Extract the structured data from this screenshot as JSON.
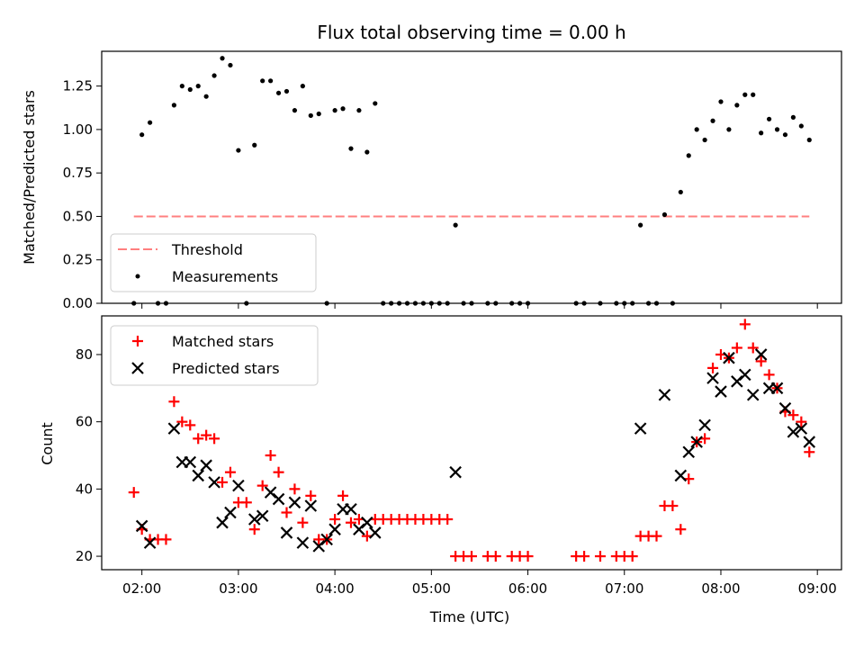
{
  "chart_data": [
    {
      "type": "scatter",
      "title": "Flux total observing time = 0.00 h",
      "xlabel": "",
      "ylabel": "Matched/Predicted stars",
      "xlim": [
        "01:35",
        "09:15"
      ],
      "ylim": [
        0,
        1.45
      ],
      "yticks": [
        0.0,
        0.25,
        0.5,
        0.75,
        1.0,
        1.25
      ],
      "ytick_labels": [
        "0.00",
        "0.25",
        "0.50",
        "0.75",
        "1.00",
        "1.25"
      ],
      "legend_position": "lower-left",
      "threshold": {
        "name": "Threshold",
        "y": 0.5,
        "x_range": [
          "01:55",
          "08:55"
        ],
        "color": "#ff7f7f",
        "style": "dashed"
      },
      "series": [
        {
          "name": "Measurements",
          "color": "#000000",
          "marker": "dot",
          "x": [
            "01:55",
            "02:00",
            "02:05",
            "02:10",
            "02:15",
            "02:20",
            "02:25",
            "02:30",
            "02:35",
            "02:40",
            "02:45",
            "02:50",
            "02:55",
            "03:00",
            "03:05",
            "03:10",
            "03:15",
            "03:20",
            "03:25",
            "03:30",
            "03:35",
            "03:40",
            "03:45",
            "03:50",
            "03:55",
            "04:00",
            "04:05",
            "04:10",
            "04:15",
            "04:20",
            "04:25",
            "04:30",
            "04:35",
            "04:40",
            "04:45",
            "04:50",
            "04:55",
            "05:00",
            "05:05",
            "05:10",
            "05:15",
            "05:20",
            "05:25",
            "05:35",
            "05:40",
            "05:50",
            "05:55",
            "06:00",
            "06:30",
            "06:35",
            "06:45",
            "06:55",
            "07:00",
            "07:05",
            "07:10",
            "07:15",
            "07:20",
            "07:25",
            "07:30",
            "07:35",
            "07:40",
            "07:45",
            "07:50",
            "07:55",
            "08:00",
            "08:05",
            "08:10",
            "08:15",
            "08:20",
            "08:25",
            "08:30",
            "08:35",
            "08:40",
            "08:45",
            "08:50",
            "08:55"
          ],
          "y": [
            0,
            0.97,
            1.04,
            0,
            0,
            1.14,
            1.25,
            1.23,
            1.25,
            1.19,
            1.31,
            1.41,
            1.37,
            0.88,
            0,
            0.91,
            1.28,
            1.28,
            1.21,
            1.22,
            1.11,
            1.25,
            1.08,
            1.09,
            0,
            1.11,
            1.12,
            0.89,
            1.11,
            0.87,
            1.15,
            0,
            0,
            0,
            0,
            0,
            0,
            0,
            0,
            0,
            0.45,
            0,
            0,
            0,
            0,
            0,
            0,
            0,
            0,
            0,
            0,
            0,
            0,
            0,
            0.45,
            0,
            0,
            0.51,
            0,
            0.64,
            0.85,
            1.0,
            0.94,
            1.05,
            1.16,
            1.0,
            1.14,
            1.2,
            1.2,
            0.98,
            1.06,
            1.0,
            0.97,
            1.07,
            1.02,
            0.94
          ]
        }
      ]
    },
    {
      "type": "scatter",
      "title": "",
      "xlabel": "Time (UTC)",
      "ylabel": "Count",
      "xlim": [
        "01:35",
        "09:15"
      ],
      "ylim": [
        16,
        91.5
      ],
      "yticks": [
        20,
        40,
        60,
        80
      ],
      "ytick_labels": [
        "20",
        "40",
        "60",
        "80"
      ],
      "xticks": [
        "02:00",
        "03:00",
        "04:00",
        "05:00",
        "06:00",
        "07:00",
        "08:00",
        "09:00"
      ],
      "xtick_labels": [
        "02:00",
        "03:00",
        "04:00",
        "05:00",
        "06:00",
        "07:00",
        "08:00",
        "09:00"
      ],
      "legend_position": "upper-left",
      "series": [
        {
          "name": "Matched stars",
          "color": "#ff0000",
          "marker": "plus",
          "x": [
            "01:55",
            "02:00",
            "02:05",
            "02:10",
            "02:15",
            "02:20",
            "02:25",
            "02:30",
            "02:35",
            "02:40",
            "02:45",
            "02:50",
            "02:55",
            "03:00",
            "03:05",
            "03:10",
            "03:15",
            "03:20",
            "03:25",
            "03:30",
            "03:35",
            "03:40",
            "03:45",
            "03:50",
            "03:55",
            "04:00",
            "04:05",
            "04:10",
            "04:15",
            "04:20",
            "04:25",
            "04:30",
            "04:35",
            "04:40",
            "04:45",
            "04:50",
            "04:55",
            "05:00",
            "05:05",
            "05:10",
            "05:15",
            "05:20",
            "05:25",
            "05:35",
            "05:40",
            "05:50",
            "05:55",
            "06:00",
            "06:30",
            "06:35",
            "06:45",
            "06:55",
            "07:00",
            "07:05",
            "07:10",
            "07:15",
            "07:20",
            "07:25",
            "07:30",
            "07:35",
            "07:40",
            "07:45",
            "07:50",
            "07:55",
            "08:00",
            "08:05",
            "08:10",
            "08:15",
            "08:20",
            "08:25",
            "08:30",
            "08:35",
            "08:40",
            "08:45",
            "08:50",
            "08:55"
          ],
          "y": [
            39,
            28,
            25,
            25,
            25,
            66,
            60,
            59,
            55,
            56,
            55,
            42,
            45,
            36,
            36,
            28,
            41,
            50,
            45,
            33,
            40,
            30,
            38,
            25,
            25,
            31,
            38,
            30,
            31,
            26,
            31,
            31,
            31,
            31,
            31,
            31,
            31,
            31,
            31,
            31,
            20,
            20,
            20,
            20,
            20,
            20,
            20,
            20,
            20,
            20,
            20,
            20,
            20,
            20,
            26,
            26,
            26,
            35,
            35,
            28,
            43,
            54,
            55,
            76,
            80,
            79,
            82,
            89,
            82,
            78,
            74,
            70,
            63,
            62,
            60,
            51
          ]
        },
        {
          "name": "Predicted stars",
          "color": "#000000",
          "marker": "x",
          "x": [
            "02:00",
            "02:05",
            "02:20",
            "02:25",
            "02:30",
            "02:35",
            "02:40",
            "02:45",
            "02:50",
            "02:55",
            "03:00",
            "03:10",
            "03:15",
            "03:20",
            "03:25",
            "03:30",
            "03:35",
            "03:40",
            "03:45",
            "03:50",
            "03:55",
            "04:00",
            "04:05",
            "04:10",
            "04:15",
            "04:20",
            "04:25",
            "05:15",
            "07:10",
            "07:25",
            "07:35",
            "07:40",
            "07:45",
            "07:50",
            "07:55",
            "08:00",
            "08:05",
            "08:10",
            "08:15",
            "08:20",
            "08:25",
            "08:30",
            "08:35",
            "08:40",
            "08:45",
            "08:50",
            "08:55"
          ],
          "y": [
            29,
            24,
            58,
            48,
            48,
            44,
            47,
            42,
            30,
            33,
            41,
            31,
            32,
            39,
            37,
            27,
            36,
            24,
            35,
            23,
            25,
            28,
            34,
            34,
            28,
            30,
            27,
            45,
            58,
            68,
            44,
            51,
            54,
            59,
            73,
            69,
            79,
            72,
            74,
            68,
            80,
            70,
            70,
            64,
            57,
            58,
            54
          ]
        }
      ]
    }
  ]
}
